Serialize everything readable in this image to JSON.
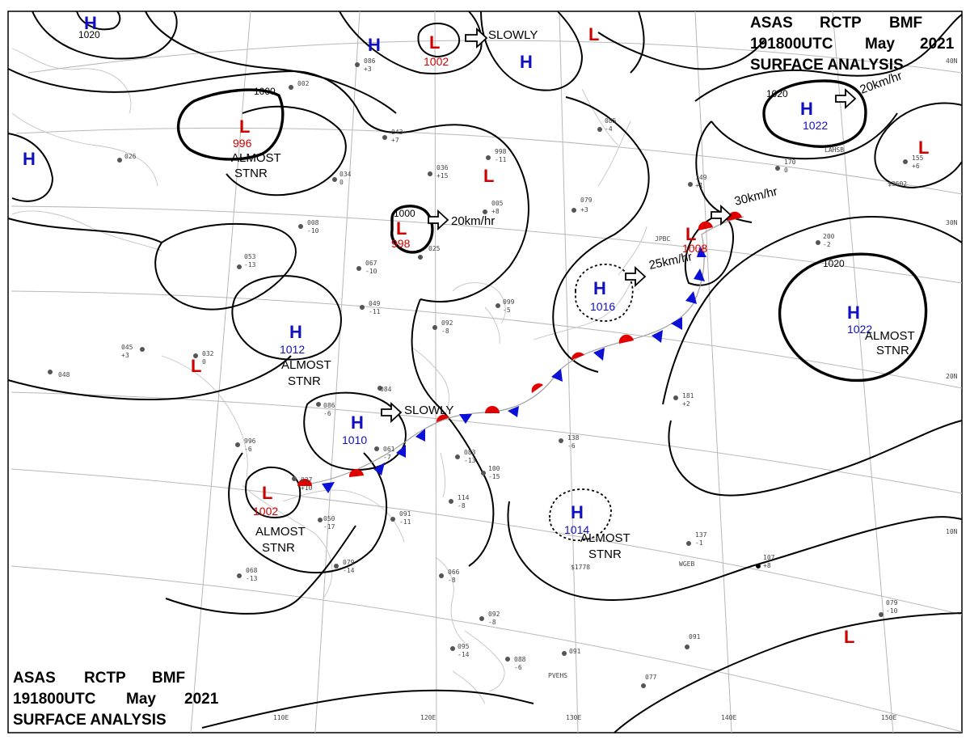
{
  "header": {
    "line1": [
      "ASAS",
      "RCTP",
      "BMF"
    ],
    "line2": [
      "191800UTC",
      "May",
      "2021"
    ],
    "line3": "SURFACE ANALYSIS"
  },
  "axes": {
    "lon_labels": [
      "110E",
      "120E",
      "130E",
      "140E",
      "150E"
    ],
    "lat_labels": [
      "40N",
      "30N",
      "20N",
      "10N"
    ]
  },
  "isobar_labels": [
    "1020",
    "1000",
    "1000",
    "1020",
    "1020"
  ],
  "pressure_systems": [
    {
      "type": "H",
      "pressure": ""
    },
    {
      "type": "H",
      "pressure": ""
    },
    {
      "type": "H",
      "pressure": ""
    },
    {
      "type": "L",
      "pressure": "1002"
    },
    {
      "type": "L",
      "pressure": ""
    },
    {
      "type": "L",
      "pressure": "996"
    },
    {
      "type": "H",
      "pressure": ""
    },
    {
      "type": "L",
      "pressure": ""
    },
    {
      "type": "L",
      "pressure": "998"
    },
    {
      "type": "H",
      "pressure": "1012"
    },
    {
      "type": "L",
      "pressure": ""
    },
    {
      "type": "H",
      "pressure": "1010"
    },
    {
      "type": "L",
      "pressure": "1002"
    },
    {
      "type": "H",
      "pressure": "1016"
    },
    {
      "type": "L",
      "pressure": "1008"
    },
    {
      "type": "H",
      "pressure": "1022"
    },
    {
      "type": "L",
      "pressure": ""
    },
    {
      "type": "H",
      "pressure": "1022"
    },
    {
      "type": "H",
      "pressure": "1014"
    },
    {
      "type": "L",
      "pressure": ""
    }
  ],
  "h1_label": "1020",
  "status_labels": [
    "ALMOST",
    "STNR",
    "ALMOST",
    "STNR",
    "ALMOST",
    "STNR",
    "ALMOST",
    "STNR",
    "ALMOST",
    "STNR"
  ],
  "movements": [
    "SLOWLY",
    "20km/hr",
    "SLOWLY",
    "25km/hr",
    "30km/hr",
    "20km/hr"
  ],
  "station_samples": [
    "086",
    "+3",
    "002",
    "043",
    "+7",
    "998",
    "-11",
    "036",
    "+15",
    "005",
    "+8",
    "079",
    "+3",
    "085",
    "-4",
    "170",
    "0",
    "149",
    "+1",
    "200",
    "-2",
    "155",
    "+6",
    "053",
    "-13",
    "067",
    "-10",
    "049",
    "-11",
    "092",
    "-8",
    "099",
    "-5",
    "138",
    "-6",
    "083",
    "-13",
    "100",
    "-15",
    "114",
    "-8",
    "091",
    "-11",
    "079",
    "-14",
    "066",
    "-8",
    "092",
    "-8",
    "095",
    "-14",
    "088",
    "-6",
    "091",
    "181",
    "+2",
    "137",
    "-1",
    "107",
    "+8",
    "079",
    "-10",
    "091",
    "077",
    "050",
    "-17",
    "068",
    "-13",
    "996",
    "-6",
    "032",
    "0",
    "048",
    "045",
    "+3",
    "084",
    "086",
    "-6",
    "061",
    "-7",
    "037",
    "+10",
    "026",
    "008",
    "-10",
    "034",
    "0",
    "025",
    "PVEHS",
    "WGEB",
    "LAHSB",
    "JPBC",
    "$1778",
    "$3602"
  ]
}
